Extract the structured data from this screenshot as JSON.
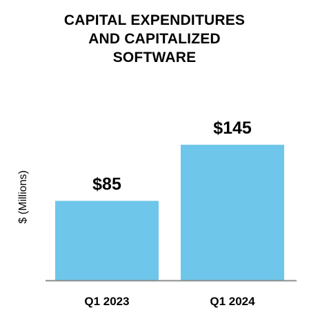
{
  "chart_data": {
    "type": "bar",
    "title_lines": [
      "CAPITAL EXPENDITURES",
      "AND CAPITALIZED",
      "SOFTWARE"
    ],
    "ylabel": "$ (Millions)",
    "xlabel": "",
    "categories": [
      "Q1 2023",
      "Q1 2024"
    ],
    "values": [
      85,
      145
    ],
    "data_labels": [
      "$85",
      "$145"
    ],
    "ylim": [
      0,
      165
    ],
    "grid": false,
    "legend": "none",
    "bar_color": "#6EC6EA",
    "axis_color": "#8C8C8C"
  }
}
